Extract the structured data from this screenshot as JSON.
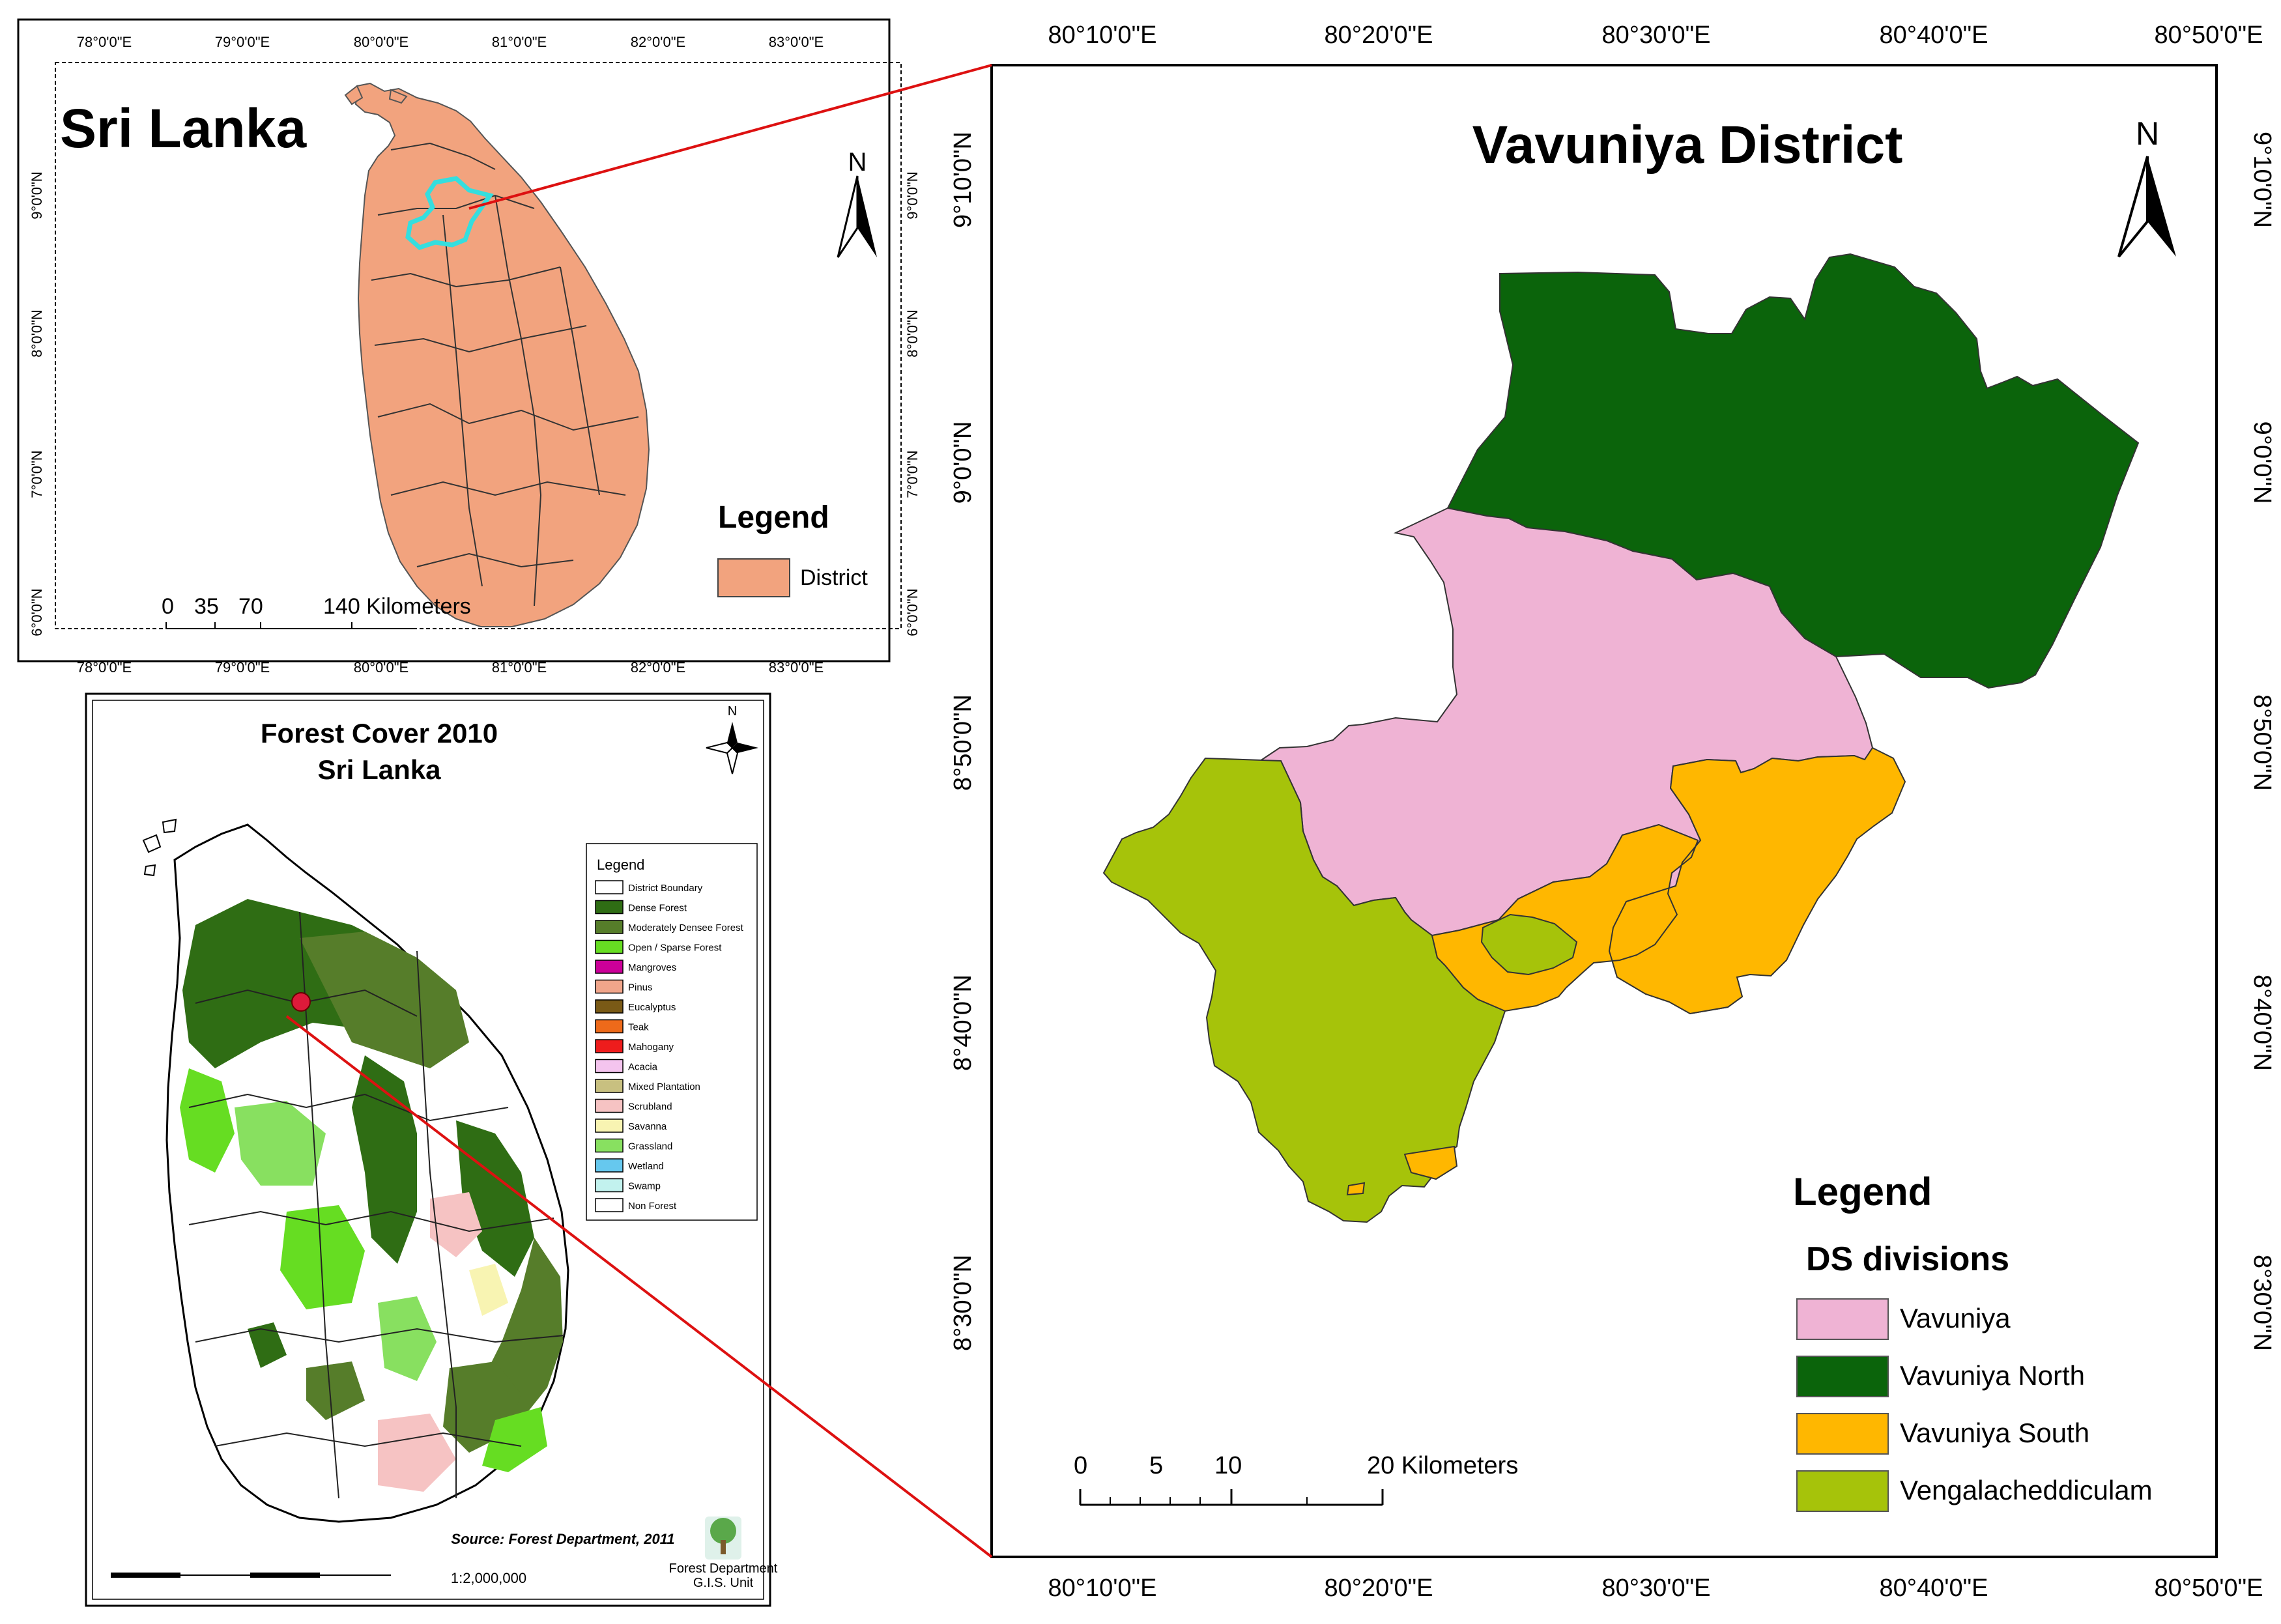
{
  "overview_map": {
    "title": "Sri Lanka",
    "top_ticks": [
      "78°0'0\"E",
      "79°0'0\"E",
      "80°0'0\"E",
      "81°0'0\"E",
      "82°0'0\"E",
      "83°0'0\"E"
    ],
    "bottom_ticks": [
      "78°0'0\"E",
      "79°0'0\"E",
      "80°0'0\"E",
      "81°0'0\"E",
      "82°0'0\"E",
      "83°0'0\"E"
    ],
    "left_ticks": [
      "9°0'0\"N",
      "8°0'0\"N",
      "7°0'0\"N",
      "6°0'0\"N"
    ],
    "right_ticks": [
      "9°0'0\"N",
      "8°0'0\"N",
      "7°0'0\"N",
      "6°0'0\"N"
    ],
    "north_label": "N",
    "legend_title": "Legend",
    "legend_items": [
      {
        "label": "District",
        "color": "#f2a37e"
      }
    ],
    "scale_labels": [
      "0",
      "35",
      "70",
      "140 Kilometers"
    ]
  },
  "forest_map": {
    "title_line1": "Forest Cover  2010",
    "title_line2": "Sri Lanka",
    "north_label": "N",
    "legend_title": "Legend",
    "legend_items": [
      {
        "label": "District Boundary",
        "color": "#ffffff"
      },
      {
        "label": "Dense Forest",
        "color": "#2f6d14"
      },
      {
        "label": "Moderately Densee Forest",
        "color": "#567d2a"
      },
      {
        "label": "Open / Sparse Forest",
        "color": "#66dd22"
      },
      {
        "label": "Mangroves",
        "color": "#cc0099"
      },
      {
        "label": "Pinus",
        "color": "#f0a58a"
      },
      {
        "label": "Eucalyptus",
        "color": "#7a5a16"
      },
      {
        "label": "Teak",
        "color": "#ee6a1a"
      },
      {
        "label": "Mahogany",
        "color": "#ee1c1c"
      },
      {
        "label": "Acacia",
        "color": "#f4c4ee"
      },
      {
        "label": "Mixed Plantation",
        "color": "#c8c080"
      },
      {
        "label": "Scrubland",
        "color": "#f6c3c3"
      },
      {
        "label": "Savanna",
        "color": "#f8f4b2"
      },
      {
        "label": "Grassland",
        "color": "#88e060"
      },
      {
        "label": "Wetland",
        "color": "#66c8ee"
      },
      {
        "label": "Swamp",
        "color": "#c2f2ee"
      },
      {
        "label": "Non Forest",
        "color": "#ffffff"
      }
    ],
    "source": "Source: Forest Department, 2011",
    "scale_text": "1:2,000,000",
    "dept_line1": "Forest Department",
    "dept_line2": "G.I.S. Unit"
  },
  "district_map": {
    "title": "Vavuniya District",
    "top_ticks": [
      "80°10'0\"E",
      "80°20'0\"E",
      "80°30'0\"E",
      "80°40'0\"E",
      "80°50'0\"E"
    ],
    "bottom_ticks": [
      "80°10'0\"E",
      "80°20'0\"E",
      "80°30'0\"E",
      "80°40'0\"E",
      "80°50'0\"E"
    ],
    "left_ticks": [
      "9°10'0\"N",
      "9°0'0\"N",
      "8°50'0\"N",
      "8°40'0\"N",
      "8°30'0\"N"
    ],
    "right_ticks": [
      "9°10'0\"N",
      "9°0'0\"N",
      "8°50'0\"N",
      "8°40'0\"N",
      "8°30'0\"N"
    ],
    "north_label": "N",
    "legend_title": "Legend",
    "legend_subtitle": "DS divisions",
    "legend_items": [
      {
        "label": "Vavuniya",
        "color": "#efb3d4"
      },
      {
        "label": "Vavuniya North",
        "color": "#0b640b"
      },
      {
        "label": "Vavuniya South",
        "color": "#ffb700"
      },
      {
        "label": "Vengalacheddiculam",
        "color": "#a6c30a"
      }
    ],
    "scale_labels": [
      "0",
      "5",
      "10",
      "20 Kilometers"
    ]
  }
}
